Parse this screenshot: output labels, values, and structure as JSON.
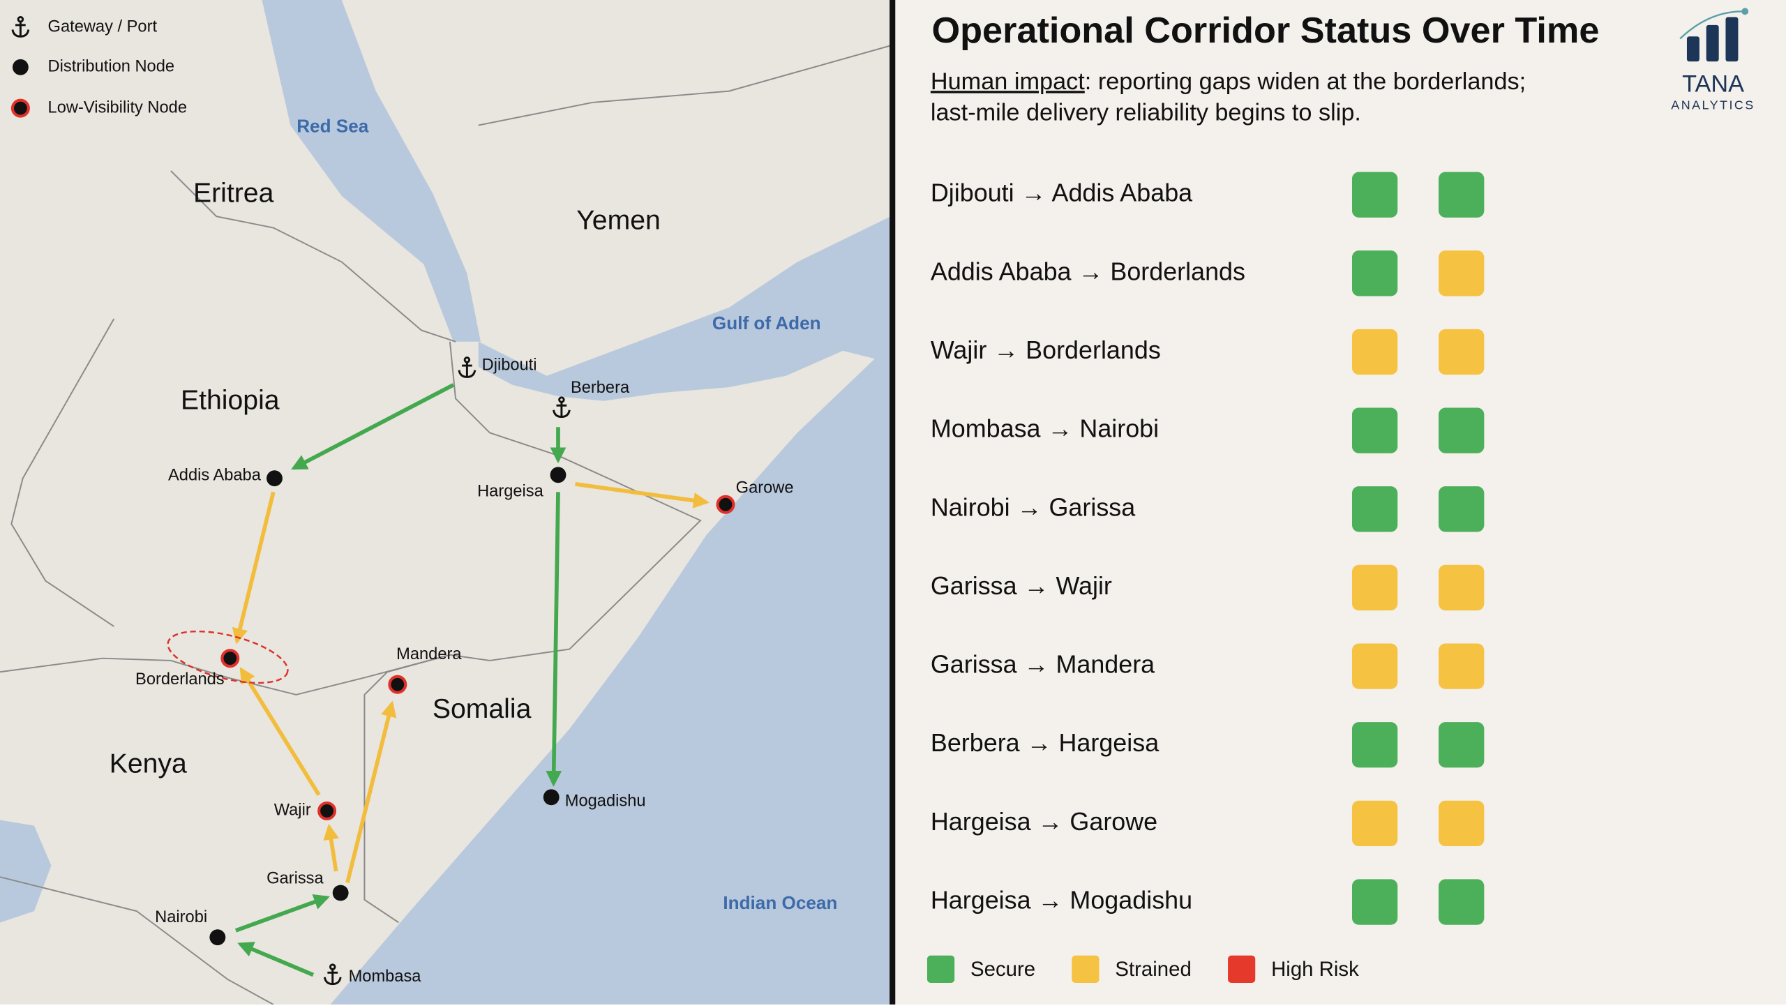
{
  "title": "Operational Corridor Status Over Time",
  "subtitle": {
    "emphasis": "Human impact",
    "lines": [
      ": reporting gaps widen at the borderlands;",
      "last-mile delivery reliability begins to slip."
    ]
  },
  "logo": {
    "name": "TANA",
    "tagline": "ANALYTICS"
  },
  "map_legend": [
    "Gateway / Port",
    "Distribution Node",
    "Low-Visibility Node"
  ],
  "map": {
    "seas": [
      "Red Sea",
      "Gulf of Aden",
      "Indian Ocean"
    ],
    "regions": [
      "Eritrea",
      "Yemen",
      "Ethiopia",
      "Somalia",
      "Kenya"
    ],
    "nodes": [
      "Djibouti",
      "Berbera",
      "Addis Ababa",
      "Hargeisa",
      "Garowe",
      "Borderlands",
      "Mandera",
      "Wajir",
      "Garissa",
      "Nairobi",
      "Mombasa",
      "Mogadishu"
    ]
  },
  "corridors": [
    {
      "label": "Djibouti → Addis Ababa",
      "status": [
        0,
        0
      ]
    },
    {
      "label": "Addis Ababa → Borderlands",
      "status": [
        0,
        1
      ]
    },
    {
      "label": "Wajir → Borderlands",
      "status": [
        1,
        1
      ]
    },
    {
      "label": "Mombasa → Nairobi",
      "status": [
        0,
        0
      ]
    },
    {
      "label": "Nairobi → Garissa",
      "status": [
        0,
        0
      ]
    },
    {
      "label": "Garissa → Wajir",
      "status": [
        1,
        1
      ]
    },
    {
      "label": "Garissa → Mandera",
      "status": [
        1,
        1
      ]
    },
    {
      "label": "Berbera → Hargeisa",
      "status": [
        0,
        0
      ]
    },
    {
      "label": "Hargeisa → Garowe",
      "status": [
        1,
        1
      ]
    },
    {
      "label": "Hargeisa → Mogadishu",
      "status": [
        0,
        0
      ]
    }
  ],
  "status_legend": [
    {
      "label": "Secure",
      "color": "#4caf5a"
    },
    {
      "label": "Strained",
      "color": "#f5c242"
    },
    {
      "label": "High Risk",
      "color": "#e5392b"
    }
  ]
}
